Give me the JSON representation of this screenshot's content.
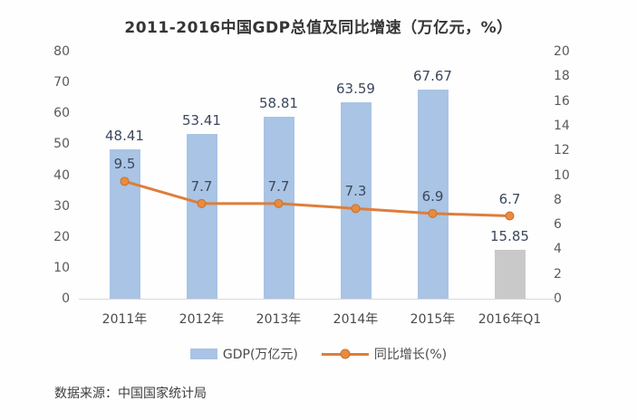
{
  "title": "2011-2016中国GDP总值及同比增速（万亿元，%）",
  "footer": {
    "source": "数据来源：中国国家统计局"
  },
  "legend": {
    "items": [
      {
        "label": "GDP(万亿元)",
        "type": "bar",
        "color": "#a9c4e4"
      },
      {
        "label": "同比增长(%)",
        "type": "line",
        "color": "#dd7e3b"
      }
    ]
  },
  "colors": {
    "bar_blue": "#a9c4e4",
    "bar_gray": "#c9c9c9",
    "line_orange": "#dd7e3b",
    "marker_orange": "#e98b3d",
    "marker_stroke": "#c86f32",
    "axis_text": "#5a5a5a",
    "value_text": "#3c485c",
    "baseline": "#d9d9d9"
  },
  "chart_data": {
    "type": "bar+line combo",
    "title": "2011-2016中国GDP总值及同比增速（万亿元，%）",
    "categories": [
      "2011年",
      "2012年",
      "2013年",
      "2014年",
      "2015年",
      "2016年Q1"
    ],
    "series": [
      {
        "name": "GDP(万亿元)",
        "type": "bar",
        "axis": "left",
        "values": [
          48.41,
          53.41,
          58.81,
          63.59,
          67.67,
          15.85
        ],
        "bar_colors": [
          "#a9c4e4",
          "#a9c4e4",
          "#a9c4e4",
          "#a9c4e4",
          "#a9c4e4",
          "#c9c9c9"
        ]
      },
      {
        "name": "同比增长(%)",
        "type": "line",
        "axis": "right",
        "values": [
          9.5,
          7.7,
          7.7,
          7.3,
          6.9,
          6.7
        ],
        "color": "#dd7e3b"
      }
    ],
    "left_axis": {
      "min": 0,
      "max": 80,
      "step": 10
    },
    "right_axis": {
      "min": 0,
      "max": 20,
      "step": 2
    },
    "grid": false,
    "legend_position": "bottom",
    "data_labels": true
  }
}
